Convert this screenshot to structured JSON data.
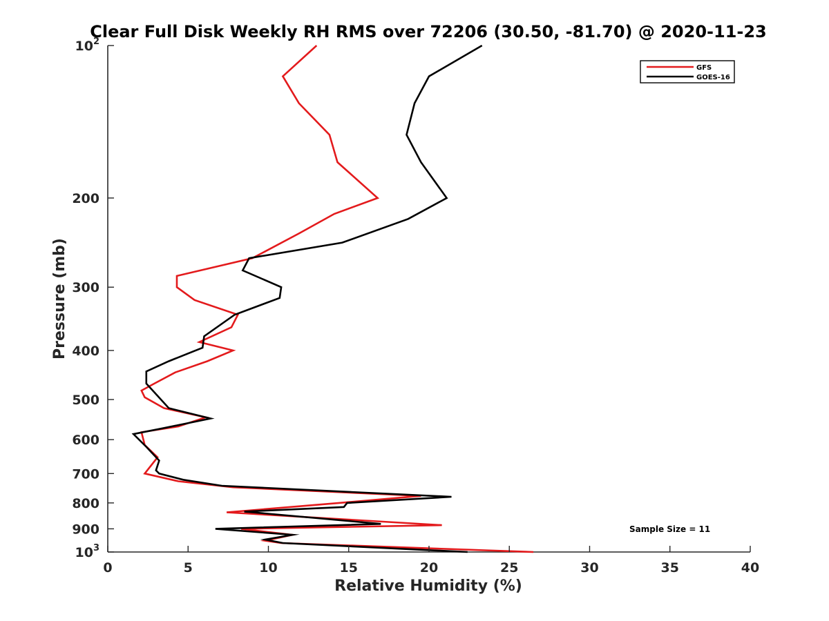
{
  "chart_data": {
    "type": "line",
    "title": "Clear Full Disk Weekly RH RMS over 72206 (30.50, -81.70) @ 2020-11-23",
    "xlabel": "Relative Humidity (%)",
    "ylabel": "Pressure (mb)",
    "xlim": [
      0,
      40
    ],
    "ylim": [
      100,
      1000
    ],
    "y_scale": "log",
    "y_reversed": true,
    "grid": false,
    "legend_position": "top-right",
    "x_ticks": [
      0,
      5,
      10,
      15,
      20,
      25,
      30,
      35,
      40
    ],
    "y_ticks": [
      {
        "value": 100,
        "base": "10",
        "exp": "2"
      },
      {
        "value": 200,
        "label": "200"
      },
      {
        "value": 300,
        "label": "300"
      },
      {
        "value": 400,
        "label": "400"
      },
      {
        "value": 500,
        "label": "500"
      },
      {
        "value": 600,
        "label": "600"
      },
      {
        "value": 700,
        "label": "700"
      },
      {
        "value": 800,
        "label": "800"
      },
      {
        "value": 900,
        "label": "900"
      },
      {
        "value": 1000,
        "base": "10",
        "exp": "3"
      }
    ],
    "annotation": "Sample Size = 11",
    "series": [
      {
        "name": "GFS",
        "color": "#e31a1c",
        "points": [
          [
            13.0,
            100
          ],
          [
            10.9,
            115
          ],
          [
            11.9,
            130
          ],
          [
            13.8,
            150
          ],
          [
            14.3,
            170
          ],
          [
            16.8,
            200
          ],
          [
            14.1,
            215
          ],
          [
            11.9,
            235
          ],
          [
            9.0,
            263
          ],
          [
            4.3,
            285
          ],
          [
            4.3,
            300
          ],
          [
            5.4,
            318
          ],
          [
            8.1,
            340
          ],
          [
            7.7,
            360
          ],
          [
            5.7,
            385
          ],
          [
            7.8,
            400
          ],
          [
            6.2,
            420
          ],
          [
            4.2,
            442
          ],
          [
            2.9,
            465
          ],
          [
            2.1,
            480
          ],
          [
            2.3,
            495
          ],
          [
            3.5,
            520
          ],
          [
            6.1,
            542
          ],
          [
            4.4,
            565
          ],
          [
            2.1,
            580
          ],
          [
            2.3,
            615
          ],
          [
            3.1,
            650
          ],
          [
            2.3,
            700
          ],
          [
            4.4,
            725
          ],
          [
            7.8,
            745
          ],
          [
            19.5,
            775
          ],
          [
            14.4,
            800
          ],
          [
            7.4,
            835
          ],
          [
            20.8,
            885
          ],
          [
            8.3,
            900
          ],
          [
            11.5,
            925
          ],
          [
            9.8,
            950
          ],
          [
            10.8,
            960
          ],
          [
            26.5,
            1000
          ]
        ]
      },
      {
        "name": "GOES-16",
        "color": "#000000",
        "points": [
          [
            23.3,
            100
          ],
          [
            20.0,
            115
          ],
          [
            19.1,
            130
          ],
          [
            18.6,
            150
          ],
          [
            19.5,
            170
          ],
          [
            21.1,
            200
          ],
          [
            18.7,
            220
          ],
          [
            14.6,
            245
          ],
          [
            8.8,
            263
          ],
          [
            8.4,
            278
          ],
          [
            10.8,
            300
          ],
          [
            10.7,
            315
          ],
          [
            7.9,
            340
          ],
          [
            6.0,
            375
          ],
          [
            5.9,
            395
          ],
          [
            3.8,
            420
          ],
          [
            2.4,
            440
          ],
          [
            2.4,
            465
          ],
          [
            2.8,
            480
          ],
          [
            3.8,
            520
          ],
          [
            6.4,
            545
          ],
          [
            3.4,
            570
          ],
          [
            1.6,
            585
          ],
          [
            2.4,
            620
          ],
          [
            3.2,
            660
          ],
          [
            3.0,
            690
          ],
          [
            3.2,
            700
          ],
          [
            4.7,
            720
          ],
          [
            7.1,
            740
          ],
          [
            21.4,
            778
          ],
          [
            14.9,
            800
          ],
          [
            14.7,
            815
          ],
          [
            8.5,
            832
          ],
          [
            17.0,
            880
          ],
          [
            6.7,
            900
          ],
          [
            11.5,
            925
          ],
          [
            9.8,
            945
          ],
          [
            10.9,
            960
          ],
          [
            22.4,
            1000
          ]
        ]
      }
    ]
  }
}
